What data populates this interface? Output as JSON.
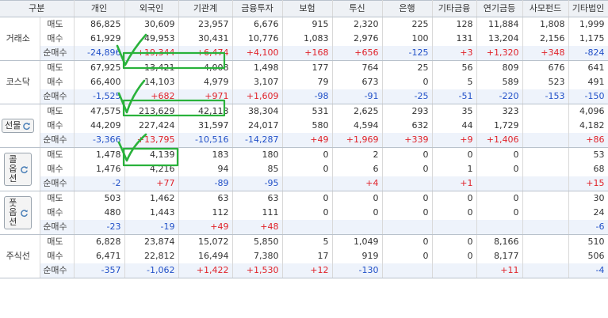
{
  "header": {
    "category": "구분",
    "columns": [
      "개인",
      "외국인",
      "기관계",
      "금융투자",
      "보험",
      "투신",
      "은행",
      "기타금융",
      "연기금등",
      "사모펀드",
      "기타법인"
    ]
  },
  "groups": [
    {
      "name": "거래소",
      "button": false,
      "rows": [
        {
          "type": "매도",
          "values": [
            "86,825",
            "30,609",
            "23,957",
            "6,676",
            "915",
            "2,320",
            "225",
            "128",
            "11,884",
            "1,808",
            "1,999"
          ]
        },
        {
          "type": "매수",
          "values": [
            "61,929",
            "49,953",
            "30,431",
            "10,776",
            "1,083",
            "2,976",
            "100",
            "131",
            "13,204",
            "2,156",
            "1,175"
          ]
        },
        {
          "type": "순매수",
          "values": [
            "-24,896",
            "+19,344",
            "+6,474",
            "+4,100",
            "+168",
            "+656",
            "-125",
            "+3",
            "+1,320",
            "+348",
            "-824"
          ]
        }
      ]
    },
    {
      "name": "코스닥",
      "button": false,
      "rows": [
        {
          "type": "매도",
          "values": [
            "67,925",
            "13,421",
            "4,008",
            "1,498",
            "177",
            "764",
            "25",
            "56",
            "809",
            "676",
            "641"
          ]
        },
        {
          "type": "매수",
          "values": [
            "66,400",
            "14,103",
            "4,979",
            "3,107",
            "79",
            "673",
            "0",
            "5",
            "589",
            "523",
            "491"
          ]
        },
        {
          "type": "순매수",
          "values": [
            "-1,525",
            "+682",
            "+971",
            "+1,609",
            "-98",
            "-91",
            "-25",
            "-51",
            "-220",
            "-153",
            "-150"
          ]
        }
      ]
    },
    {
      "name": "선물",
      "button": true,
      "rows": [
        {
          "type": "매도",
          "values": [
            "47,575",
            "213,629",
            "42,113",
            "38,304",
            "531",
            "2,625",
            "293",
            "35",
            "323",
            "",
            "4,096"
          ]
        },
        {
          "type": "매수",
          "values": [
            "44,209",
            "227,424",
            "31,597",
            "24,017",
            "580",
            "4,594",
            "632",
            "44",
            "1,729",
            "",
            "4,182"
          ]
        },
        {
          "type": "순매수",
          "values": [
            "-3,366",
            "+13,795",
            "-10,516",
            "-14,287",
            "+49",
            "+1,969",
            "+339",
            "+9",
            "+1,406",
            "",
            "+86"
          ]
        }
      ]
    },
    {
      "name": "콜옵션",
      "button": true,
      "rows": [
        {
          "type": "매도",
          "values": [
            "1,478",
            "4,139",
            "183",
            "180",
            "0",
            "2",
            "0",
            "0",
            "0",
            "",
            "53"
          ]
        },
        {
          "type": "매수",
          "values": [
            "1,476",
            "4,216",
            "94",
            "85",
            "0",
            "6",
            "0",
            "1",
            "0",
            "",
            "68"
          ]
        },
        {
          "type": "순매수",
          "values": [
            "-2",
            "+77",
            "-89",
            "-95",
            "",
            "+4",
            "",
            "+1",
            "",
            "",
            "+15"
          ]
        }
      ]
    },
    {
      "name": "풋옵션",
      "button": true,
      "rows": [
        {
          "type": "매도",
          "values": [
            "503",
            "1,462",
            "63",
            "63",
            "0",
            "0",
            "0",
            "0",
            "0",
            "",
            "30"
          ]
        },
        {
          "type": "매수",
          "values": [
            "480",
            "1,443",
            "112",
            "111",
            "0",
            "0",
            "0",
            "0",
            "0",
            "",
            "24"
          ]
        },
        {
          "type": "순매수",
          "values": [
            "-23",
            "-19",
            "+49",
            "+48",
            "",
            "",
            "",
            "",
            "",
            "",
            "-6"
          ]
        }
      ]
    },
    {
      "name": "주식선",
      "button": false,
      "rows": [
        {
          "type": "매도",
          "values": [
            "6,828",
            "23,874",
            "15,072",
            "5,850",
            "5",
            "1,049",
            "0",
            "0",
            "8,166",
            "",
            "510"
          ]
        },
        {
          "type": "매수",
          "values": [
            "6,471",
            "22,812",
            "16,494",
            "7,380",
            "17",
            "919",
            "0",
            "0",
            "8,177",
            "",
            "506"
          ]
        },
        {
          "type": "순매수",
          "values": [
            "-357",
            "-1,062",
            "+1,422",
            "+1,530",
            "+12",
            "-130",
            "",
            "",
            "+11",
            "",
            "-4"
          ]
        }
      ]
    }
  ],
  "annotations": {
    "highlight_color": "#29b23b"
  }
}
